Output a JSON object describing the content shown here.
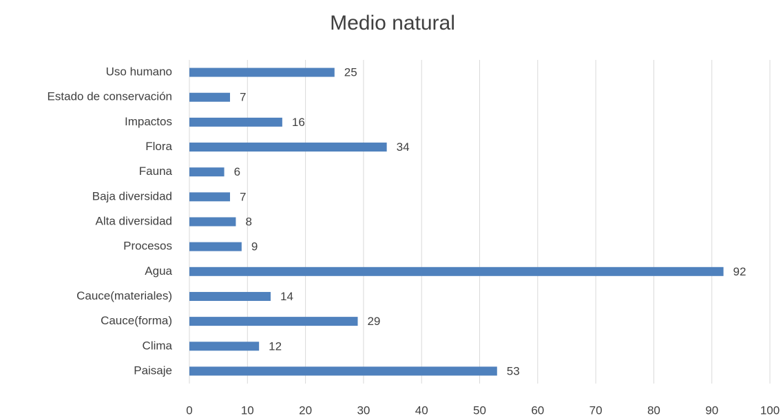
{
  "chart_data": {
    "type": "hbar",
    "title": "Medio natural",
    "categories": [
      "Uso humano",
      "Estado de conservación",
      "Impactos",
      "Flora",
      "Fauna",
      "Baja diversidad",
      "Alta diversidad",
      "Procesos",
      "Agua",
      "Cauce(materiales)",
      "Cauce(forma)",
      "Clima",
      "Paisaje"
    ],
    "values": [
      25,
      7,
      16,
      34,
      6,
      7,
      8,
      9,
      92,
      14,
      29,
      12,
      53
    ],
    "color": "#4f81bd",
    "xlim": [
      0,
      100
    ],
    "xticks": [
      0,
      10,
      20,
      30,
      40,
      50,
      60,
      70,
      80,
      90,
      100
    ],
    "grid": true
  }
}
